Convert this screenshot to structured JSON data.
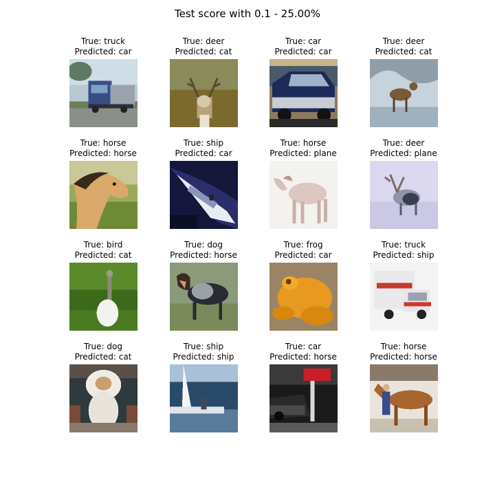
{
  "figure": {
    "title": "Test score with 0.1 - 25.00%"
  },
  "labels": {
    "true_prefix": "True: ",
    "pred_prefix": "Predicted: "
  },
  "chart_data": {
    "type": "image-grid",
    "title": "Test score with 0.1 - 25.00%",
    "rows": 4,
    "cols": 4,
    "samples": [
      {
        "true": "truck",
        "predicted": "car",
        "subject": "truck"
      },
      {
        "true": "deer",
        "predicted": "cat",
        "subject": "deer-field"
      },
      {
        "true": "car",
        "predicted": "car",
        "subject": "car-dark"
      },
      {
        "true": "deer",
        "predicted": "cat",
        "subject": "deer-snow"
      },
      {
        "true": "horse",
        "predicted": "horse",
        "subject": "horse-head"
      },
      {
        "true": "ship",
        "predicted": "car",
        "subject": "speedboat"
      },
      {
        "true": "horse",
        "predicted": "plane",
        "subject": "horse-white"
      },
      {
        "true": "deer",
        "predicted": "plane",
        "subject": "deer-white"
      },
      {
        "true": "bird",
        "predicted": "cat",
        "subject": "bird-grass"
      },
      {
        "true": "dog",
        "predicted": "horse",
        "subject": "dog-standing"
      },
      {
        "true": "frog",
        "predicted": "car",
        "subject": "frog"
      },
      {
        "true": "truck",
        "predicted": "ship",
        "subject": "truck-white"
      },
      {
        "true": "dog",
        "predicted": "cat",
        "subject": "dog-fluffy"
      },
      {
        "true": "ship",
        "predicted": "ship",
        "subject": "sailboat"
      },
      {
        "true": "car",
        "predicted": "horse",
        "subject": "car-street"
      },
      {
        "true": "horse",
        "predicted": "horse",
        "subject": "horse-brown"
      }
    ]
  }
}
